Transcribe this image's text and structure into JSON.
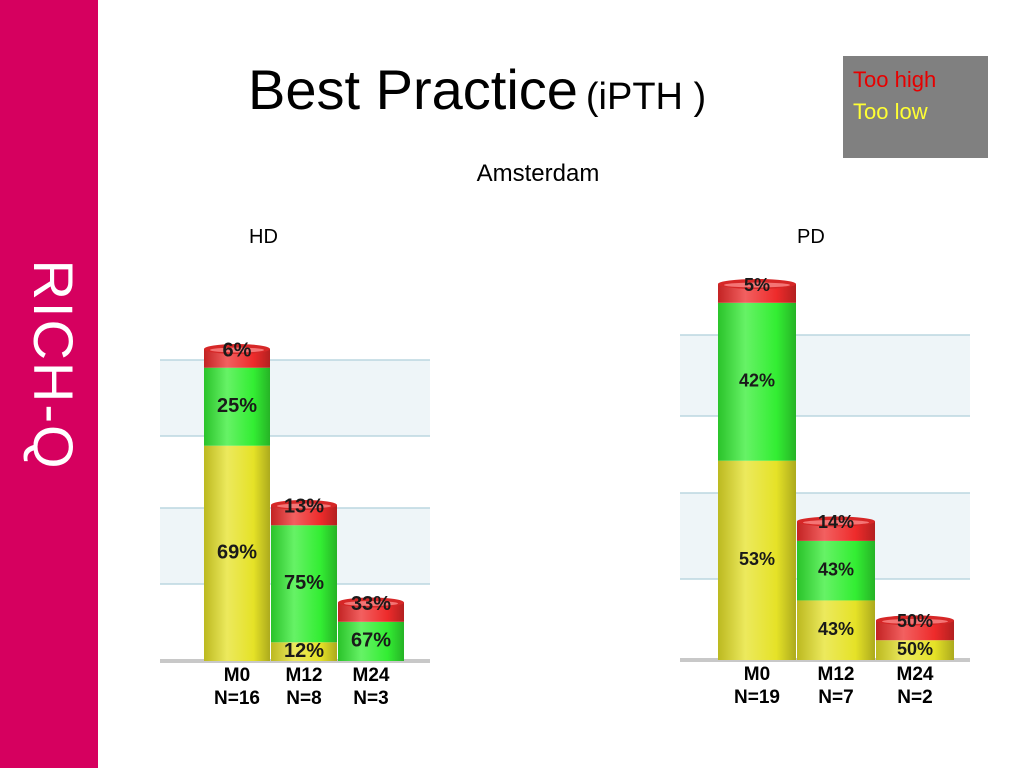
{
  "title": "Best Practice",
  "title_suffix": "(iPTH )",
  "subtitle": "Amsterdam",
  "legend": {
    "items": [
      {
        "label": "Too high",
        "color": "#e60000"
      },
      {
        "label": "Too low",
        "color": "#ffff33"
      }
    ]
  },
  "logo_text": "RICH-Q",
  "colors": {
    "sidebar": "#d6005f",
    "legend_box": "#808080",
    "low": "#e5e227",
    "target": "#33ee33",
    "high": "#ee2b2b"
  },
  "chart_data": [
    {
      "type": "bar",
      "stacked": true,
      "panel": "HD",
      "title": "HD",
      "categories": [
        "M0",
        "M12",
        "M24"
      ],
      "sample_sizes": [
        "N=16",
        "N=8",
        "N=3"
      ],
      "series": [
        {
          "color": "#e5e227",
          "values": [
            69,
            12,
            0
          ]
        },
        {
          "color": "#33ee33",
          "values": [
            25,
            75,
            67
          ]
        },
        {
          "color": "#ee2b2b",
          "values": [
            6,
            13,
            33
          ]
        }
      ],
      "labels": [
        [
          "69%",
          "12%",
          ""
        ],
        [
          "25%",
          "75%",
          "67%"
        ],
        [
          "6%",
          "13%",
          "33%"
        ]
      ],
      "bar_heights": [
        16,
        8,
        3
      ],
      "grid": true
    },
    {
      "type": "bar",
      "stacked": true,
      "panel": "PD",
      "title": "PD",
      "categories": [
        "M0",
        "M12",
        "M24"
      ],
      "sample_sizes": [
        "N=19",
        "N=7",
        "N=2"
      ],
      "series": [
        {
          "color": "#e5e227",
          "values": [
            53,
            43,
            50
          ]
        },
        {
          "color": "#33ee33",
          "values": [
            42,
            43,
            0
          ]
        },
        {
          "color": "#ee2b2b",
          "values": [
            5,
            14,
            50
          ]
        }
      ],
      "labels": [
        [
          "53%",
          "43%",
          "50%"
        ],
        [
          "42%",
          "43%",
          ""
        ],
        [
          "5%",
          "14%",
          "50%"
        ]
      ],
      "bar_heights": [
        19,
        7,
        2
      ],
      "grid": true
    }
  ]
}
